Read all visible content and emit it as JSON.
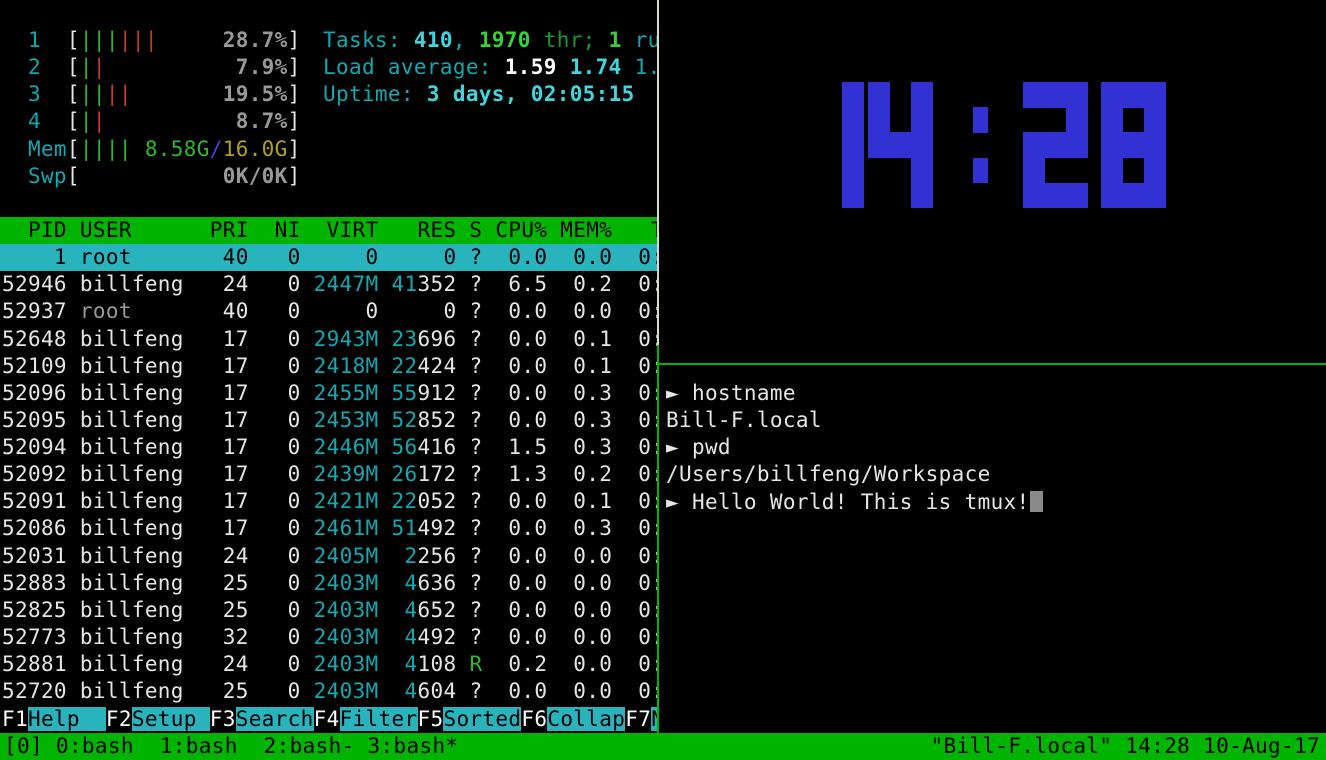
{
  "meters": {
    "cpus": [
      {
        "id": "1",
        "green_bars": 3,
        "red_bars": 3,
        "pct": "28.7%"
      },
      {
        "id": "2",
        "green_bars": 1,
        "red_bars": 1,
        "pct": "7.9%"
      },
      {
        "id": "3",
        "green_bars": 2,
        "red_bars": 2,
        "pct": "19.5%"
      },
      {
        "id": "4",
        "green_bars": 1,
        "red_bars": 1,
        "pct": "8.7%"
      }
    ],
    "mem": {
      "label": "Mem",
      "bars": 4,
      "used": "8.58G",
      "sep": "/",
      "total": "16.0G"
    },
    "swp": {
      "label": "Swp",
      "value": "0K/0K"
    }
  },
  "summary": {
    "tasks": [
      [
        "Tasks: ",
        "c"
      ],
      [
        "410",
        "bc"
      ],
      [
        ", ",
        "c"
      ],
      [
        "1970",
        "bg"
      ],
      [
        " thr; ",
        "dg"
      ],
      [
        "1",
        "bg"
      ],
      [
        " ru",
        "c"
      ]
    ],
    "load": [
      [
        "Load average: ",
        "c"
      ],
      [
        "1.59 ",
        "bw"
      ],
      [
        "1.74 ",
        "bc"
      ],
      [
        "1.",
        "c"
      ]
    ],
    "uptime": [
      [
        "Uptime: ",
        "c"
      ],
      [
        "3 days, 02:05:15",
        "bc"
      ]
    ]
  },
  "table": {
    "header": "  PID USER      PRI  NI  VIRT   RES S CPU% MEM%   T",
    "rows": [
      {
        "pid": "1",
        "user": "root",
        "pri": "40",
        "ni": "0",
        "virt": "0",
        "res": [
          "",
          "0"
        ],
        "s": "?",
        "cpu": "0.0",
        "mem": "0.0",
        "time": "0:",
        "selected": true
      },
      {
        "pid": "52946",
        "user": "billfeng",
        "pri": "24",
        "ni": "0",
        "virt": "2447M",
        "res": [
          "41",
          "352"
        ],
        "s": "?",
        "cpu": "6.5",
        "mem": "0.2",
        "time": "0:"
      },
      {
        "pid": "52937",
        "user": "root",
        "pri": "40",
        "ni": "0",
        "virt": "0",
        "res": [
          "",
          "0"
        ],
        "s": "?",
        "cpu": "0.0",
        "mem": "0.0",
        "time": "0:",
        "user_gray": true
      },
      {
        "pid": "52648",
        "user": "billfeng",
        "pri": "17",
        "ni": "0",
        "virt": "2943M",
        "res": [
          "23",
          "696"
        ],
        "s": "?",
        "cpu": "0.0",
        "mem": "0.1",
        "time": "0:"
      },
      {
        "pid": "52109",
        "user": "billfeng",
        "pri": "17",
        "ni": "0",
        "virt": "2418M",
        "res": [
          "22",
          "424"
        ],
        "s": "?",
        "cpu": "0.0",
        "mem": "0.1",
        "time": "0:"
      },
      {
        "pid": "52096",
        "user": "billfeng",
        "pri": "17",
        "ni": "0",
        "virt": "2455M",
        "res": [
          "55",
          "912"
        ],
        "s": "?",
        "cpu": "0.0",
        "mem": "0.3",
        "time": "0:"
      },
      {
        "pid": "52095",
        "user": "billfeng",
        "pri": "17",
        "ni": "0",
        "virt": "2453M",
        "res": [
          "52",
          "852"
        ],
        "s": "?",
        "cpu": "0.0",
        "mem": "0.3",
        "time": "0:"
      },
      {
        "pid": "52094",
        "user": "billfeng",
        "pri": "17",
        "ni": "0",
        "virt": "2446M",
        "res": [
          "56",
          "416"
        ],
        "s": "?",
        "cpu": "1.5",
        "mem": "0.3",
        "time": "0:"
      },
      {
        "pid": "52092",
        "user": "billfeng",
        "pri": "17",
        "ni": "0",
        "virt": "2439M",
        "res": [
          "26",
          "172"
        ],
        "s": "?",
        "cpu": "1.3",
        "mem": "0.2",
        "time": "0:"
      },
      {
        "pid": "52091",
        "user": "billfeng",
        "pri": "17",
        "ni": "0",
        "virt": "2421M",
        "res": [
          "22",
          "052"
        ],
        "s": "?",
        "cpu": "0.0",
        "mem": "0.1",
        "time": "0:"
      },
      {
        "pid": "52086",
        "user": "billfeng",
        "pri": "17",
        "ni": "0",
        "virt": "2461M",
        "res": [
          "51",
          "492"
        ],
        "s": "?",
        "cpu": "0.0",
        "mem": "0.3",
        "time": "0:"
      },
      {
        "pid": "52031",
        "user": "billfeng",
        "pri": "24",
        "ni": "0",
        "virt": "2405M",
        "res": [
          "2",
          "256"
        ],
        "s": "?",
        "cpu": "0.0",
        "mem": "0.0",
        "time": "0:"
      },
      {
        "pid": "52883",
        "user": "billfeng",
        "pri": "25",
        "ni": "0",
        "virt": "2403M",
        "res": [
          "4",
          "636"
        ],
        "s": "?",
        "cpu": "0.0",
        "mem": "0.0",
        "time": "0:"
      },
      {
        "pid": "52825",
        "user": "billfeng",
        "pri": "25",
        "ni": "0",
        "virt": "2403M",
        "res": [
          "4",
          "652"
        ],
        "s": "?",
        "cpu": "0.0",
        "mem": "0.0",
        "time": "0:"
      },
      {
        "pid": "52773",
        "user": "billfeng",
        "pri": "32",
        "ni": "0",
        "virt": "2403M",
        "res": [
          "4",
          "492"
        ],
        "s": "?",
        "cpu": "0.0",
        "mem": "0.0",
        "time": "0:"
      },
      {
        "pid": "52881",
        "user": "billfeng",
        "pri": "24",
        "ni": "0",
        "virt": "2403M",
        "res": [
          "4",
          "108"
        ],
        "s": "R",
        "cpu": "0.2",
        "mem": "0.0",
        "time": "0:",
        "s_green": true
      },
      {
        "pid": "52720",
        "user": "billfeng",
        "pri": "25",
        "ni": "0",
        "virt": "2403M",
        "res": [
          "4",
          "604"
        ],
        "s": "?",
        "cpu": "0.0",
        "mem": "0.0",
        "time": "0:"
      }
    ]
  },
  "fkeys": [
    {
      "key": "F1",
      "label": "Help  "
    },
    {
      "key": "F2",
      "label": "Setup "
    },
    {
      "key": "F3",
      "label": "Search"
    },
    {
      "key": "F4",
      "label": "Filter"
    },
    {
      "key": "F5",
      "label": "Sorted"
    },
    {
      "key": "F6",
      "label": "Collap"
    },
    {
      "key": "F7",
      "label": "N"
    }
  ],
  "clock": {
    "time": "14:28",
    "color": "#3232d4"
  },
  "terminal": {
    "lines": [
      {
        "prompt": true,
        "text": "hostname",
        "cursor": false
      },
      {
        "prompt": false,
        "text": "Bill-F.local",
        "cursor": false
      },
      {
        "prompt": true,
        "text": "pwd",
        "cursor": false
      },
      {
        "prompt": false,
        "text": "/Users/billfeng/Workspace",
        "cursor": false
      },
      {
        "prompt": true,
        "text": "Hello World! This is tmux!",
        "cursor": true
      }
    ],
    "prompt_glyph": "►"
  },
  "statusbar": {
    "left": "[0] 0:bash  1:bash  2:bash- 3:bash*",
    "right": "\"Bill-F.local\" 14:28 10-Aug-17"
  },
  "colors": {
    "accent_green": "#00b400",
    "accent_cyan_bg": "#29b3bd",
    "cyan_text": "#12a8b0",
    "bright_cyan": "#3fd6de",
    "bright_green": "#35d435",
    "bar_red": "#c23a28",
    "mem_total_yellow": "#b3a018",
    "mem_sep_blue": "#4046dd",
    "clock_blue": "#3232d4",
    "border_white": "#d8d8d0",
    "gray": "#999999"
  }
}
